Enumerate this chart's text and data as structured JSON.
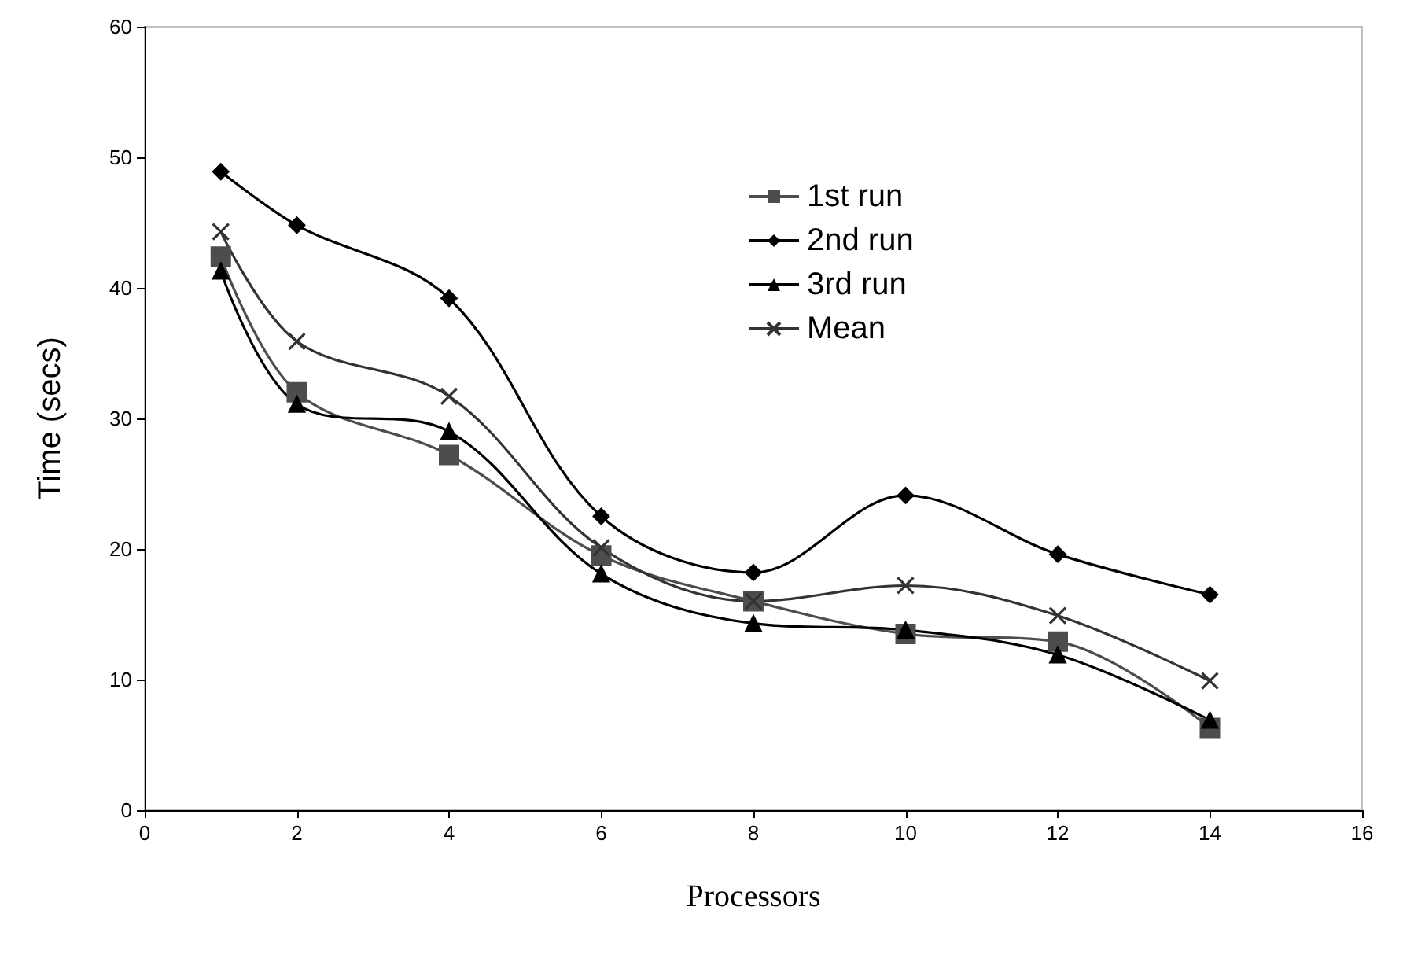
{
  "chart_data": {
    "type": "line",
    "xlabel": "Processors",
    "ylabel": "Time (secs)",
    "x": [
      1,
      2,
      4,
      6,
      8,
      10,
      12,
      14
    ],
    "series": [
      {
        "name": "1st run",
        "color": "#4d4d4d",
        "marker": "square",
        "values": [
          42.4,
          32.0,
          27.2,
          19.5,
          16.0,
          13.5,
          12.9,
          6.3
        ]
      },
      {
        "name": "2nd run",
        "color": "#000000",
        "marker": "diamond",
        "values": [
          48.9,
          44.8,
          39.2,
          22.5,
          18.2,
          24.1,
          19.6,
          16.5
        ]
      },
      {
        "name": "3rd run",
        "color": "#000000",
        "marker": "triangle",
        "values": [
          41.3,
          31.1,
          29.0,
          18.1,
          14.3,
          13.8,
          11.9,
          6.9
        ]
      },
      {
        "name": "Mean",
        "color": "#333333",
        "marker": "cross",
        "values": [
          44.3,
          35.9,
          31.7,
          20.1,
          16.0,
          17.2,
          14.9,
          9.9
        ]
      }
    ],
    "xlim": [
      0,
      16
    ],
    "xticks": [
      0,
      2,
      4,
      6,
      8,
      10,
      12,
      14,
      16
    ],
    "ylim": [
      0,
      60
    ],
    "yticks": [
      0,
      10,
      20,
      30,
      40,
      50,
      60
    ],
    "grid": false,
    "legend": "top"
  }
}
